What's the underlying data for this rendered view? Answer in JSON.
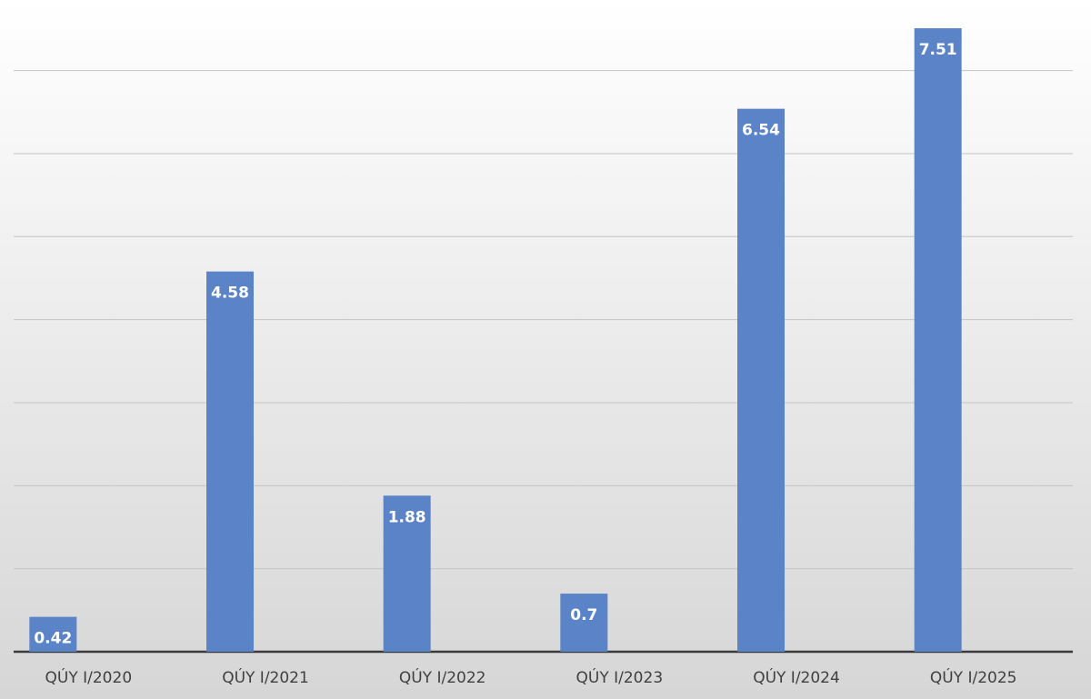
{
  "chart_data": {
    "type": "bar",
    "categories": [
      "QÚY I/2020",
      "QÚY I/2021",
      "QÚY I/2022",
      "QÚY I/2023",
      "QÚY I/2024",
      "QÚY I/2025"
    ],
    "values": [
      0.42,
      4.58,
      1.88,
      0.7,
      6.54,
      7.51
    ],
    "color": "#5b84c8",
    "ylim": [
      0,
      7.85
    ],
    "yticks": [
      0,
      1,
      2,
      3,
      4,
      5,
      6,
      7
    ],
    "grid": true
  }
}
